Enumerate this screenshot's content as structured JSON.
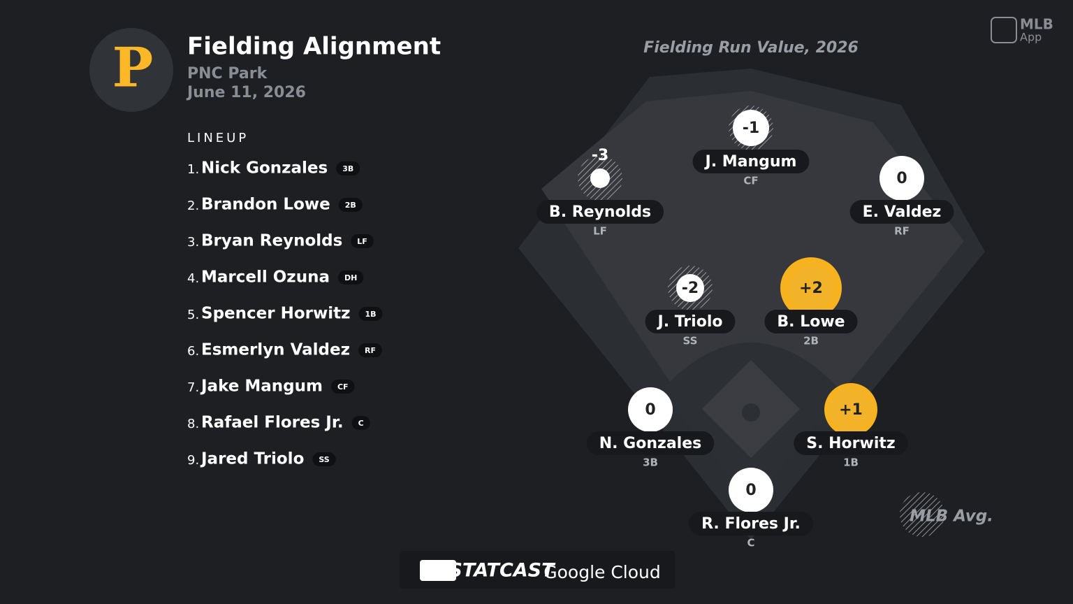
{
  "header": {
    "logo": "P",
    "title": "Fielding Alignment",
    "venue": "PNC Park",
    "date": "June 11, 2026"
  },
  "lineup": {
    "title": "LINEUP",
    "players": [
      {
        "order": "1.",
        "name": "Nick Gonzales",
        "position": "3B"
      },
      {
        "order": "2.",
        "name": "Brandon Lowe",
        "position": "2B"
      },
      {
        "order": "3.",
        "name": "Bryan Reynolds",
        "position": "LF"
      },
      {
        "order": "4.",
        "name": "Marcell Ozuna",
        "position": "DH"
      },
      {
        "order": "5.",
        "name": "Spencer Horwitz",
        "position": "1B"
      },
      {
        "order": "6.",
        "name": "Esmerlyn Valdez",
        "position": "RF"
      },
      {
        "order": "7.",
        "name": "Jake Mangum",
        "position": "CF"
      },
      {
        "order": "8.",
        "name": "Rafael Flores Jr.",
        "position": "C"
      },
      {
        "order": "9.",
        "name": "Jared Triolo",
        "position": "SS"
      }
    ]
  },
  "field": {
    "title": "Fielding Run Value, 2026",
    "fielders": [
      {
        "name": "B. Reynolds",
        "position": "LF",
        "value": -3,
        "label": "-3"
      },
      {
        "name": "J. Mangum",
        "position": "CF",
        "value": -1,
        "label": "-1"
      },
      {
        "name": "E. Valdez",
        "position": "RF",
        "value": 0,
        "label": "0"
      },
      {
        "name": "J. Triolo",
        "position": "SS",
        "value": -2,
        "label": "-2"
      },
      {
        "name": "B. Lowe",
        "position": "2B",
        "value": 2,
        "label": "+2"
      },
      {
        "name": "N. Gonzales",
        "position": "3B",
        "value": 0,
        "label": "0"
      },
      {
        "name": "S. Horwitz",
        "position": "1B",
        "value": 1,
        "label": "+1"
      },
      {
        "name": "R. Flores Jr.",
        "position": "C",
        "value": 0,
        "label": "0"
      }
    ],
    "legend": "MLB Avg."
  },
  "footer": {
    "brand": "STATCAST",
    "partner": "Google Cloud"
  },
  "app": {
    "name": "MLB",
    "label": "App"
  }
}
